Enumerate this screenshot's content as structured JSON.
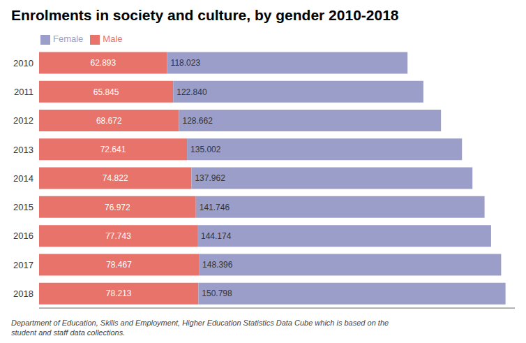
{
  "chart_data": {
    "type": "bar",
    "orientation": "horizontal",
    "stacked": true,
    "title": "Enrolments in society and culture, by gender 2010-2018",
    "footnote": "Department of Education, Skills and Employment, Higher Education Statistics Data Cube which is based on the\nstudent and staff data collections.",
    "categories": [
      "2010",
      "2011",
      "2012",
      "2013",
      "2014",
      "2015",
      "2016",
      "2017",
      "2018"
    ],
    "series": [
      {
        "name": "Male",
        "color": "#E8736A",
        "values": [
          62.893,
          65.845,
          68.672,
          72.641,
          74.822,
          76.972,
          77.743,
          78.467,
          78.213
        ],
        "value_labels": [
          "62.893",
          "65.845",
          "68.672",
          "72.641",
          "74.822",
          "76.972",
          "77.743",
          "78.467",
          "78.213"
        ]
      },
      {
        "name": "Female",
        "color": "#9B9EC8",
        "values": [
          118.023,
          122.84,
          128.662,
          135.002,
          137.962,
          141.746,
          144.174,
          148.396,
          150.798
        ],
        "value_labels": [
          "118.023",
          "122.840",
          "128.662",
          "135.002",
          "137.962",
          "141.746",
          "144.174",
          "148.396",
          "150.798"
        ]
      }
    ],
    "xlim": [
      0,
      233.59122
    ],
    "grid": false,
    "legend": "upper left",
    "data_labels": true,
    "tick_labels": "y"
  }
}
